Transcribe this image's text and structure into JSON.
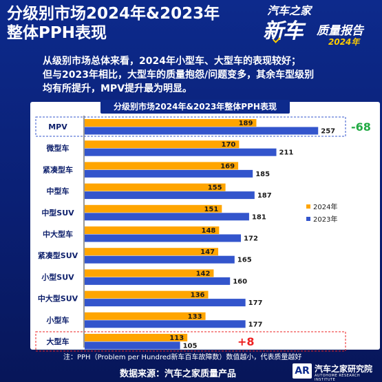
{
  "header": {
    "title_line1": "分级别市场2024年&2023年",
    "title_line2": "整体PPH表现"
  },
  "brand": {
    "line1": "汽车之家",
    "line2": "新车",
    "line3": "质量报告",
    "year": "2024年"
  },
  "summary": {
    "line1": "从级别市场总体来看，2024年小型车、大型车的表现较好；",
    "line2": "但与2023年相比，大型车的质量抱怨/问题变多，其余车型级别",
    "line3": "均有所提升，MPV提升最为明显。"
  },
  "chart_data": {
    "type": "bar",
    "orientation": "horizontal",
    "title": "分级别市场2024年&2023年整体PPH表现",
    "categories": [
      "MPV",
      "微型车",
      "紧凑型车",
      "中型车",
      "中型SUV",
      "中大型车",
      "紧凑型SUV",
      "小型SUV",
      "中大型SUV",
      "小型车",
      "大型车"
    ],
    "series": [
      {
        "name": "2024年",
        "color": "#ffa500",
        "values": [
          189,
          170,
          169,
          155,
          151,
          148,
          147,
          142,
          136,
          133,
          113
        ]
      },
      {
        "name": "2023年",
        "color": "#3355cc",
        "values": [
          257,
          211,
          185,
          187,
          181,
          172,
          165,
          160,
          177,
          177,
          105
        ]
      }
    ],
    "annotations": [
      {
        "category": "MPV",
        "text": "-68",
        "color": "#22aa44"
      },
      {
        "category": "大型车",
        "text": "+8",
        "color": "#ee2222"
      }
    ],
    "legend_position": "right",
    "xlim": [
      0,
      260
    ]
  },
  "footer": {
    "note": "注：PPH（Problem per Hundred新车百车故障数）数值越小，代表质量越好",
    "source": "数据来源：汽车之家质量产品",
    "logo_mark": "AR",
    "logo_name": "汽车之家研究院",
    "logo_sub": "AUTOHOME RESEARCH INSTITUTE"
  }
}
